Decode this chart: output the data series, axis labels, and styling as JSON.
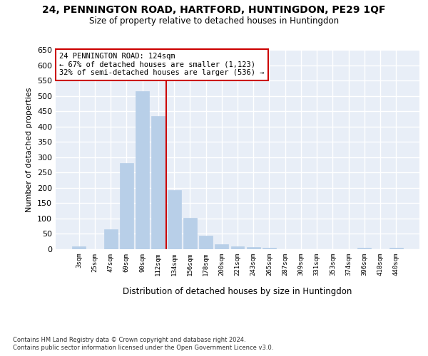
{
  "title": "24, PENNINGTON ROAD, HARTFORD, HUNTINGDON, PE29 1QF",
  "subtitle": "Size of property relative to detached houses in Huntingdon",
  "xlabel": "Distribution of detached houses by size in Huntingdon",
  "ylabel": "Number of detached properties",
  "categories": [
    "3sqm",
    "25sqm",
    "47sqm",
    "69sqm",
    "90sqm",
    "112sqm",
    "134sqm",
    "156sqm",
    "178sqm",
    "200sqm",
    "221sqm",
    "243sqm",
    "265sqm",
    "287sqm",
    "309sqm",
    "331sqm",
    "353sqm",
    "374sqm",
    "396sqm",
    "418sqm",
    "440sqm"
  ],
  "values": [
    10,
    0,
    65,
    280,
    515,
    435,
    192,
    102,
    45,
    17,
    10,
    6,
    5,
    0,
    0,
    0,
    0,
    0,
    5,
    0,
    5
  ],
  "bar_color": "#b8cfe8",
  "bar_edge_color": "#b8cfe8",
  "vline_x": 5.5,
  "vline_color": "#cc0000",
  "ylim": [
    0,
    650
  ],
  "yticks": [
    0,
    50,
    100,
    150,
    200,
    250,
    300,
    350,
    400,
    450,
    500,
    550,
    600,
    650
  ],
  "annotation_text": "24 PENNINGTON ROAD: 124sqm\n← 67% of detached houses are smaller (1,123)\n32% of semi-detached houses are larger (536) →",
  "annotation_box_color": "#ffffff",
  "annotation_box_edge_color": "#cc0000",
  "bg_color": "#e8eef7",
  "grid_color": "#ffffff",
  "footer_line1": "Contains HM Land Registry data © Crown copyright and database right 2024.",
  "footer_line2": "Contains public sector information licensed under the Open Government Licence v3.0."
}
